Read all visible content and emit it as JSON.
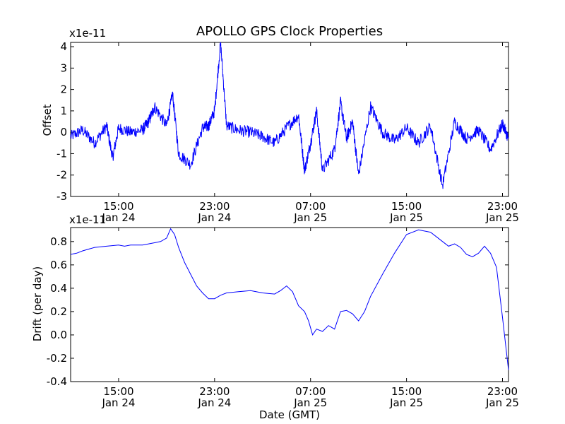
{
  "title": "APOLLO GPS Clock Properties",
  "chart_data": [
    {
      "type": "line",
      "title": "APOLLO GPS Clock Properties",
      "ylabel": "Offset",
      "multiplier": "x1e-11",
      "ylim": [
        -3,
        4.2
      ],
      "yticks": [
        "-3",
        "-2",
        "-1",
        "0",
        "1",
        "2",
        "3",
        "4"
      ],
      "xlim": [
        "Jan 24 11:00",
        "Jan 25 23:30"
      ],
      "xticks": [
        {
          "time": "15:00",
          "date": "Jan 24"
        },
        {
          "time": "23:00",
          "date": "Jan 24"
        },
        {
          "time": "07:00",
          "date": "Jan 25"
        },
        {
          "time": "15:00",
          "date": "Jan 25"
        },
        {
          "time": "23:00",
          "date": "Jan 25"
        }
      ],
      "color": "#0000ff",
      "series": [
        {
          "x": [
            "Jan 24 11:00",
            "Jan 24 12:00",
            "Jan 24 13:00",
            "Jan 24 14:00",
            "Jan 24 14:30",
            "Jan 24 15:00",
            "Jan 24 16:00",
            "Jan 24 17:00",
            "Jan 24 17:30",
            "Jan 24 18:00",
            "Jan 24 19:00",
            "Jan 24 19:30",
            "Jan 24 20:00",
            "Jan 24 21:00",
            "Jan 24 22:00",
            "Jan 24 22:30",
            "Jan 24 23:00",
            "Jan 24 23:30",
            "Jan 25 00:00",
            "Jan 25 01:00",
            "Jan 25 02:00",
            "Jan 25 03:00",
            "Jan 25 04:00",
            "Jan 25 05:00",
            "Jan 25 06:00",
            "Jan 25 06:30",
            "Jan 25 07:00",
            "Jan 25 07:30",
            "Jan 25 08:00",
            "Jan 25 09:00",
            "Jan 25 09:30",
            "Jan 25 10:00",
            "Jan 25 10:30",
            "Jan 25 11:00",
            "Jan 25 12:00",
            "Jan 25 13:00",
            "Jan 25 14:00",
            "Jan 25 15:00",
            "Jan 25 16:00",
            "Jan 25 17:00",
            "Jan 25 18:00",
            "Jan 25 19:00",
            "Jan 25 20:00",
            "Jan 25 21:00",
            "Jan 25 22:00",
            "Jan 25 23:00",
            "Jan 25 23:30"
          ],
          "y": [
            -0.2,
            0.1,
            -0.5,
            0.3,
            -1.2,
            0.2,
            0.0,
            0.1,
            0.5,
            1.2,
            0.3,
            1.8,
            -1.0,
            -1.5,
            0.2,
            0.3,
            1.0,
            4.2,
            0.3,
            0.1,
            0.0,
            -0.2,
            -0.5,
            0.2,
            0.8,
            -1.8,
            -0.5,
            1.0,
            -1.8,
            -0.8,
            1.4,
            -0.3,
            0.5,
            -2.0,
            1.2,
            0.0,
            -0.4,
            0.2,
            -0.5,
            0.3,
            -2.5,
            0.5,
            -0.3,
            0.1,
            -0.8,
            0.4,
            -0.3
          ]
        }
      ]
    },
    {
      "type": "line",
      "ylabel": "Drift (per day)",
      "xlabel": "Date (GMT)",
      "multiplier": "x1e-11",
      "ylim": [
        -0.4,
        0.92
      ],
      "yticks": [
        "-0.4",
        "-0.2",
        "0.0",
        "0.2",
        "0.4",
        "0.6",
        "0.8"
      ],
      "xlim": [
        "Jan 24 11:00",
        "Jan 25 23:30"
      ],
      "xticks": [
        {
          "time": "15:00",
          "date": "Jan 24"
        },
        {
          "time": "23:00",
          "date": "Jan 24"
        },
        {
          "time": "07:00",
          "date": "Jan 25"
        },
        {
          "time": "15:00",
          "date": "Jan 25"
        },
        {
          "time": "23:00",
          "date": "Jan 25"
        }
      ],
      "color": "#0000ff",
      "series": [
        {
          "x": [
            "Jan 24 11:00",
            "Jan 24 11:30",
            "Jan 24 12:00",
            "Jan 24 13:00",
            "Jan 24 14:00",
            "Jan 24 15:00",
            "Jan 24 15:30",
            "Jan 24 16:00",
            "Jan 24 17:00",
            "Jan 24 18:00",
            "Jan 24 18:30",
            "Jan 24 19:00",
            "Jan 24 19:20",
            "Jan 24 19:40",
            "Jan 24 20:00",
            "Jan 24 20:30",
            "Jan 24 21:00",
            "Jan 24 21:30",
            "Jan 24 22:00",
            "Jan 24 22:30",
            "Jan 24 23:00",
            "Jan 24 23:30",
            "Jan 25 00:00",
            "Jan 25 01:00",
            "Jan 25 02:00",
            "Jan 25 03:00",
            "Jan 25 04:00",
            "Jan 25 04:30",
            "Jan 25 05:00",
            "Jan 25 05:30",
            "Jan 25 06:00",
            "Jan 25 06:30",
            "Jan 25 06:50",
            "Jan 25 07:10",
            "Jan 25 07:30",
            "Jan 25 08:00",
            "Jan 25 08:30",
            "Jan 25 09:00",
            "Jan 25 09:30",
            "Jan 25 10:00",
            "Jan 25 10:30",
            "Jan 25 11:00",
            "Jan 25 11:30",
            "Jan 25 12:00",
            "Jan 25 13:00",
            "Jan 25 14:00",
            "Jan 25 15:00",
            "Jan 25 16:00",
            "Jan 25 17:00",
            "Jan 25 17:30",
            "Jan 25 18:00",
            "Jan 25 18:30",
            "Jan 25 19:00",
            "Jan 25 19:30",
            "Jan 25 20:00",
            "Jan 25 20:30",
            "Jan 25 21:00",
            "Jan 25 21:30",
            "Jan 25 22:00",
            "Jan 25 22:30",
            "Jan 25 23:00",
            "Jan 25 23:30"
          ],
          "y": [
            0.69,
            0.7,
            0.72,
            0.75,
            0.76,
            0.77,
            0.76,
            0.77,
            0.77,
            0.79,
            0.8,
            0.83,
            0.91,
            0.86,
            0.75,
            0.62,
            0.52,
            0.42,
            0.36,
            0.31,
            0.31,
            0.34,
            0.36,
            0.37,
            0.38,
            0.36,
            0.35,
            0.38,
            0.42,
            0.37,
            0.25,
            0.2,
            0.12,
            0.0,
            0.05,
            0.03,
            0.08,
            0.05,
            0.2,
            0.21,
            0.18,
            0.12,
            0.2,
            0.33,
            0.52,
            0.7,
            0.86,
            0.9,
            0.88,
            0.84,
            0.8,
            0.76,
            0.78,
            0.75,
            0.69,
            0.67,
            0.7,
            0.76,
            0.7,
            0.58,
            0.15,
            -0.3
          ]
        }
      ]
    }
  ]
}
